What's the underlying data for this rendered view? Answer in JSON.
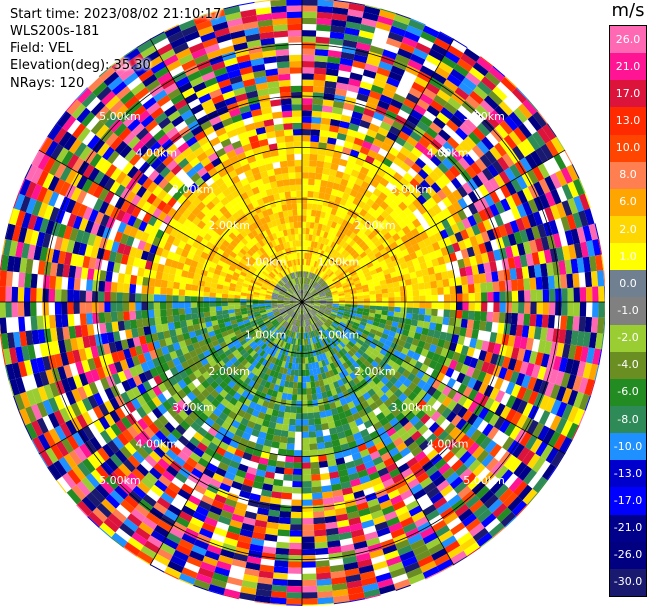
{
  "info": {
    "start_time": "Start time: 2023/08/02 21:10:17",
    "instrument": "WLS200s-181",
    "field": "Field: VEL",
    "elevation": "Elevation(deg): 35.30",
    "nrays": "NRays: 120"
  },
  "colorbar": {
    "unit": "m/s",
    "labels": [
      "26.0",
      "21.0",
      "17.0",
      "13.0",
      "10.0",
      "8.0",
      "6.0",
      "2.0",
      "1.0",
      "0.0",
      "-1.0",
      "-2.0",
      "-4.0",
      "-6.0",
      "-8.0",
      "-10.0",
      "-13.0",
      "-17.0",
      "-21.0",
      "-26.0",
      "-30.0"
    ],
    "colors": [
      "#ff69b4",
      "#ff1493",
      "#dc143c",
      "#ff2a00",
      "#ff4500",
      "#ff7f50",
      "#ffa500",
      "#ffd700",
      "#ffff00",
      "#708090",
      "#808080",
      "#9acd32",
      "#6b8e23",
      "#228b22",
      "#2e8b57",
      "#1e90ff",
      "#0000cd",
      "#0000ff",
      "#00008b",
      "#000080",
      "#191970"
    ]
  },
  "chart_data": {
    "type": "ppi",
    "field": "VEL",
    "nrays": 120,
    "elevation_deg": 35.3,
    "range_rings_km": [
      1.0,
      2.0,
      3.0,
      4.0,
      5.0
    ],
    "ring_labels": [
      "1.00km",
      "2.00km",
      "3.00km",
      "4.00km",
      "5.00km"
    ],
    "max_range_km": 5.9,
    "spokes_deg": [
      0,
      30,
      60,
      90,
      120,
      150,
      180,
      210,
      240,
      270,
      300,
      330
    ],
    "colorbar_range": [
      -30.0,
      26.0
    ],
    "colorbar_unit": "m/s"
  }
}
